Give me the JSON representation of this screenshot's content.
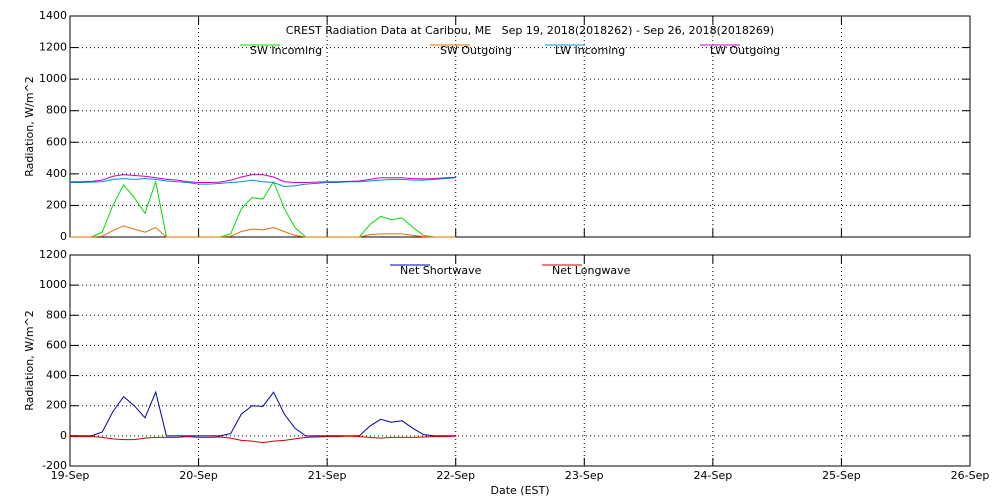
{
  "chart_data": [
    {
      "type": "line",
      "title": "CREST Radiation Data at Caribou, ME   Sep 19, 2018(2018262) - Sep 26, 2018(2018269)",
      "ylabel": "Radiation, W/m^2",
      "x": [
        0,
        2,
        4,
        6,
        8,
        10,
        12,
        14,
        16,
        18,
        20,
        22,
        24,
        26,
        28,
        30,
        32,
        34,
        36,
        38,
        40,
        42,
        44,
        46,
        48,
        50,
        52,
        54,
        56,
        58,
        60,
        62,
        64,
        66,
        68,
        70,
        72
      ],
      "xlim": [
        0,
        168
      ],
      "xticks": [
        0,
        24,
        48,
        72,
        96,
        120,
        144,
        168
      ],
      "ylim": [
        0,
        1400
      ],
      "yticks": [
        0,
        200,
        400,
        600,
        800,
        1000,
        1200,
        1400
      ],
      "grid": true,
      "series": [
        {
          "name": "SW Incoming",
          "color": "#00dd00",
          "values": [
            0,
            0,
            0,
            30,
            200,
            330,
            250,
            150,
            350,
            0,
            0,
            0,
            0,
            0,
            0,
            20,
            180,
            250,
            240,
            350,
            180,
            60,
            0,
            0,
            0,
            0,
            0,
            0,
            80,
            130,
            110,
            120,
            60,
            10,
            0,
            0,
            0
          ]
        },
        {
          "name": "SW Outgoing",
          "color": "#e07000",
          "values": [
            0,
            0,
            0,
            5,
            40,
            70,
            50,
            30,
            60,
            0,
            0,
            0,
            0,
            0,
            0,
            5,
            35,
            50,
            45,
            60,
            35,
            10,
            0,
            0,
            0,
            0,
            0,
            0,
            15,
            20,
            20,
            20,
            10,
            2,
            0,
            0,
            0
          ]
        },
        {
          "name": "LW Incoming",
          "color": "#0090d0",
          "values": [
            345,
            345,
            348,
            350,
            365,
            370,
            365,
            370,
            365,
            355,
            350,
            345,
            335,
            335,
            340,
            345,
            350,
            360,
            350,
            345,
            320,
            325,
            335,
            340,
            345,
            345,
            350,
            350,
            355,
            360,
            365,
            365,
            360,
            360,
            365,
            370,
            375
          ]
        },
        {
          "name": "LW Outgoing",
          "color": "#cc00cc",
          "values": [
            350,
            350,
            352,
            360,
            385,
            395,
            390,
            385,
            375,
            365,
            360,
            350,
            345,
            345,
            348,
            360,
            380,
            395,
            395,
            380,
            350,
            345,
            345,
            348,
            350,
            350,
            352,
            355,
            365,
            375,
            375,
            375,
            370,
            368,
            370,
            375,
            378
          ]
        }
      ]
    },
    {
      "type": "line",
      "ylabel": "Radiation, W/m^2",
      "xlabel": "Date (EST)",
      "x": [
        0,
        2,
        4,
        6,
        8,
        10,
        12,
        14,
        16,
        18,
        20,
        22,
        24,
        26,
        28,
        30,
        32,
        34,
        36,
        38,
        40,
        42,
        44,
        46,
        48,
        50,
        52,
        54,
        56,
        58,
        60,
        62,
        64,
        66,
        68,
        70,
        72
      ],
      "xlim": [
        0,
        168
      ],
      "xticks": [
        {
          "value": 0,
          "label": "19-Sep"
        },
        {
          "value": 24,
          "label": "20-Sep"
        },
        {
          "value": 48,
          "label": "21-Sep"
        },
        {
          "value": 72,
          "label": "22-Sep"
        },
        {
          "value": 96,
          "label": "23-Sep"
        },
        {
          "value": 120,
          "label": "24-Sep"
        },
        {
          "value": 144,
          "label": "25-Sep"
        },
        {
          "value": 168,
          "label": "26-Sep"
        }
      ],
      "ylim": [
        -200,
        1200
      ],
      "yticks": [
        -200,
        0,
        200,
        400,
        600,
        800,
        1000,
        1200
      ],
      "grid": true,
      "series": [
        {
          "name": "Net Shortwave",
          "color": "#0000aa",
          "values": [
            0,
            0,
            0,
            25,
            160,
            260,
            200,
            120,
            290,
            0,
            0,
            0,
            0,
            0,
            0,
            15,
            145,
            200,
            195,
            290,
            145,
            50,
            0,
            0,
            0,
            0,
            0,
            0,
            65,
            110,
            90,
            100,
            50,
            8,
            0,
            0,
            0
          ]
        },
        {
          "name": "Net Longwave",
          "color": "#cc0000",
          "values": [
            -5,
            -5,
            -4,
            -10,
            -20,
            -25,
            -25,
            -15,
            -10,
            -10,
            -10,
            -5,
            -10,
            -10,
            -8,
            -15,
            -30,
            -35,
            -45,
            -35,
            -30,
            -20,
            -10,
            -8,
            -5,
            -5,
            -2,
            -5,
            -10,
            -15,
            -10,
            -10,
            -10,
            -8,
            -5,
            -5,
            -3
          ]
        }
      ]
    }
  ]
}
